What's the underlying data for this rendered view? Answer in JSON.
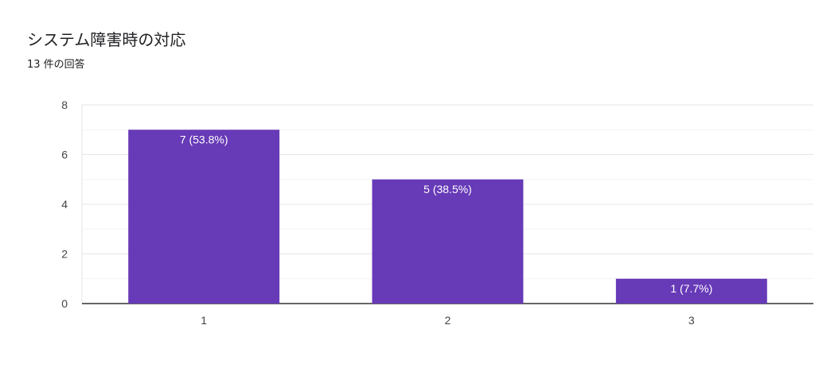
{
  "title": "システム障害時の対応",
  "subtitle": "13 件の回答",
  "colors": {
    "bar": "#673ab7",
    "grid_major": "#e6e6e6",
    "grid_minor": "#f3f3f3",
    "axis": "#333333"
  },
  "chart_data": {
    "type": "bar",
    "title": "システム障害時の対応",
    "subtitle": "13 件の回答",
    "categories": [
      "1",
      "2",
      "3"
    ],
    "values": [
      7,
      5,
      1
    ],
    "data_labels": [
      "7 (53.8%)",
      "5 (38.5%)",
      "1 (7.7%)"
    ],
    "ylim": [
      0,
      8
    ],
    "yticks": [
      "0",
      "2",
      "4",
      "6",
      "8"
    ],
    "grid": true,
    "legend": "none"
  }
}
